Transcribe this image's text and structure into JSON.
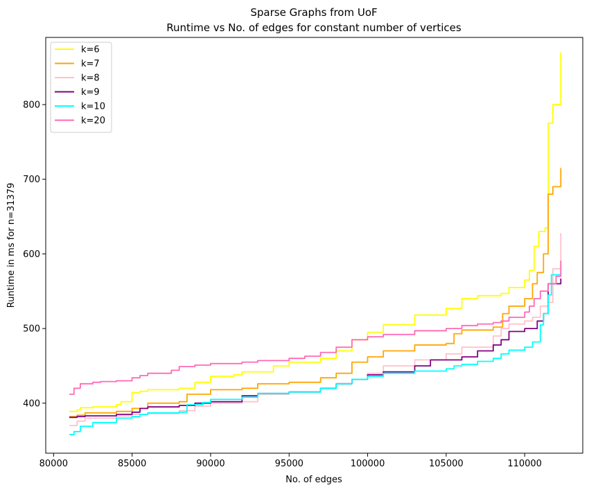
{
  "chart_data": {
    "type": "line",
    "title": "Sparse Graphs from UoF",
    "subtitle": "Runtime vs No. of edges for constant number of vertices",
    "xlabel": "No. of edges",
    "ylabel": "Runtime in ms for n=31379",
    "xlim": [
      79500,
      113700
    ],
    "ylim": [
      333,
      890
    ],
    "xticks": [
      80000,
      85000,
      90000,
      95000,
      100000,
      105000,
      110000
    ],
    "yticks": [
      400,
      500,
      600,
      700,
      800
    ],
    "grid": false,
    "legend_position": "top-left",
    "series": [
      {
        "name": "k=6",
        "color": "#ffff00",
        "x": [
          81000,
          81500,
          81700,
          82500,
          84000,
          84300,
          85000,
          85500,
          86000,
          88000,
          89000,
          90000,
          91500,
          92000,
          94000,
          95000,
          97000,
          98000,
          99000,
          100000,
          101000,
          103000,
          105000,
          106000,
          107000,
          108500,
          109000,
          110000,
          110300,
          110600,
          110900,
          111300,
          111500,
          111800,
          112300
        ],
        "y": [
          389,
          391,
          394,
          395,
          398,
          402,
          414,
          416,
          418,
          420,
          428,
          436,
          438,
          442,
          450,
          455,
          460,
          470,
          485,
          495,
          505,
          518,
          527,
          540,
          544,
          547,
          555,
          565,
          578,
          610,
          630,
          635,
          775,
          800,
          870
        ]
      },
      {
        "name": "k=7",
        "color": "#ffa500",
        "x": [
          81000,
          81500,
          82000,
          84000,
          85000,
          86000,
          88000,
          88500,
          90000,
          92000,
          93000,
          95000,
          97000,
          98000,
          99000,
          100000,
          101000,
          103000,
          105000,
          105500,
          106000,
          108000,
          108600,
          109000,
          110000,
          110500,
          110800,
          111200,
          111500,
          111800,
          112300
        ],
        "y": [
          382,
          384,
          387,
          389,
          393,
          400,
          402,
          412,
          418,
          420,
          426,
          428,
          434,
          440,
          455,
          462,
          470,
          478,
          480,
          493,
          498,
          502,
          520,
          530,
          540,
          560,
          575,
          600,
          680,
          690,
          715
        ]
      },
      {
        "name": "k=8",
        "color": "#ffc0cb",
        "x": [
          81000,
          81500,
          82000,
          84000,
          85000,
          86000,
          88000,
          89000,
          90000,
          92000,
          93000,
          95000,
          97000,
          98000,
          99000,
          100000,
          101000,
          103000,
          105000,
          106000,
          108000,
          108500,
          109000,
          110000,
          110500,
          111000,
          111500,
          111800,
          112300
        ],
        "y": [
          370,
          376,
          380,
          383,
          385,
          386,
          390,
          396,
          400,
          402,
          412,
          415,
          420,
          426,
          432,
          440,
          450,
          458,
          466,
          475,
          490,
          500,
          506,
          510,
          515,
          530,
          535,
          580,
          628
        ]
      },
      {
        "name": "k=9",
        "color": "#800080",
        "x": [
          81000,
          81500,
          82000,
          84000,
          85000,
          85500,
          86000,
          88000,
          89000,
          90000,
          92000,
          93000,
          95000,
          97000,
          98000,
          99000,
          100000,
          101000,
          103000,
          104000,
          106000,
          107000,
          108000,
          108500,
          109000,
          110000,
          110800,
          111200,
          111500,
          112300
        ],
        "y": [
          381,
          382,
          383,
          385,
          388,
          393,
          395,
          397,
          400,
          402,
          410,
          413,
          415,
          420,
          426,
          432,
          438,
          442,
          450,
          458,
          462,
          470,
          478,
          485,
          496,
          500,
          510,
          520,
          560,
          567
        ]
      },
      {
        "name": "k=10",
        "color": "#00ffff",
        "x": [
          81000,
          81300,
          81700,
          82500,
          84000,
          85000,
          85500,
          86000,
          88000,
          88500,
          89500,
          90000,
          92000,
          93000,
          95000,
          97000,
          98000,
          99000,
          100000,
          101000,
          103000,
          105000,
          105500,
          106000,
          107000,
          108000,
          108500,
          109000,
          110000,
          110500,
          111000,
          111200,
          111500,
          111700,
          112300
        ],
        "y": [
          358,
          362,
          369,
          374,
          380,
          382,
          385,
          387,
          388,
          398,
          401,
          405,
          408,
          413,
          415,
          420,
          426,
          432,
          436,
          440,
          443,
          446,
          450,
          452,
          456,
          460,
          466,
          471,
          475,
          482,
          505,
          520,
          545,
          572,
          577
        ]
      },
      {
        "name": "k=20",
        "color": "#ff69b4",
        "x": [
          81000,
          81300,
          81700,
          82500,
          83000,
          84000,
          85000,
          85500,
          86000,
          87500,
          88000,
          89000,
          90000,
          92000,
          93000,
          95000,
          96000,
          97000,
          98000,
          99000,
          100000,
          101000,
          103000,
          105000,
          106000,
          107000,
          108000,
          108500,
          109000,
          110000,
          110300,
          110600,
          111000,
          111500,
          112000,
          112300
        ],
        "y": [
          412,
          420,
          426,
          428,
          429,
          430,
          434,
          437,
          440,
          444,
          449,
          451,
          453,
          455,
          457,
          460,
          463,
          468,
          475,
          485,
          489,
          492,
          497,
          500,
          504,
          506,
          508,
          510,
          515,
          522,
          530,
          540,
          550,
          560,
          570,
          591
        ]
      }
    ]
  }
}
